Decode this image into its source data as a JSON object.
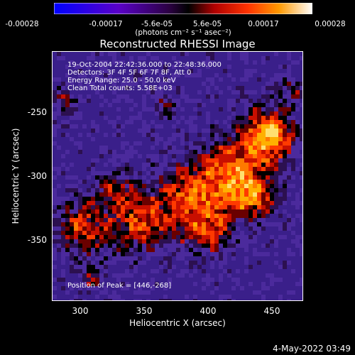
{
  "colorbar": {
    "ticks": [
      "-0.00028",
      "-0.00017",
      "-5.6e-05",
      "5.6e-05",
      "0.00017",
      "0.00028"
    ],
    "units": "(photons cm⁻² s⁻¹ asec⁻²)",
    "colors": [
      "#0000ff",
      "#6a00c8",
      "#000000",
      "#ff2200",
      "#ff8800",
      "#ffffff"
    ]
  },
  "plot": {
    "title": "Reconstructed RHESSI Image",
    "info_lines": [
      "19-Oct-2004 22:42:36.000 to 22:48:36.000",
      "Detectors: 3F 4F 5F 6F 7F 8F, Att 0",
      "Energy Range: 25.0 - 50.0 keV",
      "Clean     Total counts: 5.58E+03"
    ],
    "peak_label": "Position of Peak = [446,-268]",
    "x_ticks": [
      "300",
      "350",
      "400",
      "450"
    ],
    "y_ticks": [
      "-250",
      "-300",
      "-350"
    ],
    "x_label": "Heliocentric X (arcsec)",
    "y_label": "Heliocentric Y (arcsec)",
    "x_range": [
      280,
      472
    ],
    "y_range": [
      -396,
      -202
    ]
  },
  "footer": {
    "datestamp": "4-May-2022 03:49"
  }
}
